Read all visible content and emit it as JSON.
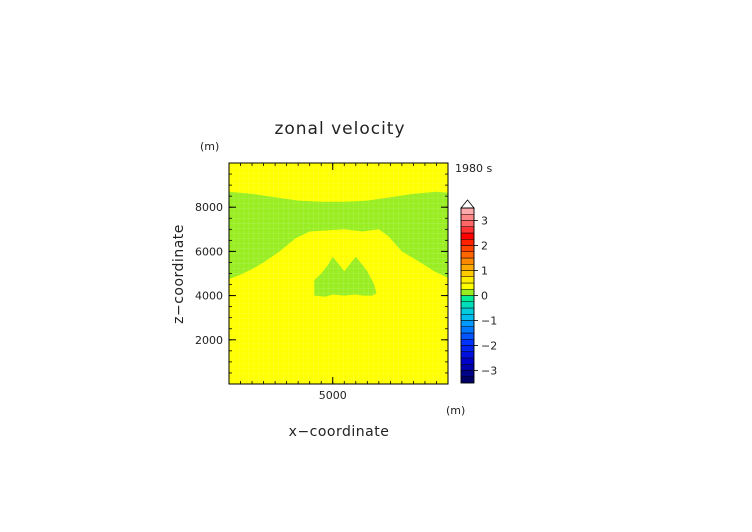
{
  "chart_data": {
    "type": "heatmap",
    "title": "zonal velocity",
    "xlabel": "x−coordinate",
    "ylabel": "z−coordinate",
    "x_unit": "(m)",
    "y_unit": "(m)",
    "time_label": "1980 s",
    "xlim": [
      500,
      10000
    ],
    "ylim": [
      0,
      10000
    ],
    "x_ticks": [
      {
        "value": 5000,
        "label": "5000"
      }
    ],
    "y_ticks": [
      {
        "value": 2000,
        "label": "2000"
      },
      {
        "value": 4000,
        "label": "4000"
      },
      {
        "value": 6000,
        "label": "6000"
      },
      {
        "value": 8000,
        "label": "8000"
      }
    ],
    "background_value": 0.2,
    "background_color": "#ffff00",
    "regions": [
      {
        "value": -0.2,
        "color": "#99ee22",
        "points": [
          [
            500,
            8700
          ],
          [
            1500,
            8600
          ],
          [
            2500,
            8450
          ],
          [
            3500,
            8300
          ],
          [
            4500,
            8250
          ],
          [
            5500,
            8250
          ],
          [
            6500,
            8300
          ],
          [
            7500,
            8450
          ],
          [
            8500,
            8600
          ],
          [
            9500,
            8700
          ],
          [
            10000,
            8650
          ],
          [
            10000,
            4800
          ],
          [
            9400,
            5100
          ],
          [
            8800,
            5500
          ],
          [
            8000,
            6000
          ],
          [
            7400,
            6700
          ],
          [
            7000,
            7000
          ],
          [
            6300,
            6900
          ],
          [
            5500,
            7000
          ],
          [
            4800,
            6950
          ],
          [
            4000,
            6900
          ],
          [
            3400,
            6600
          ],
          [
            2700,
            6000
          ],
          [
            2000,
            5500
          ],
          [
            1500,
            5200
          ],
          [
            1000,
            4950
          ],
          [
            500,
            4750
          ]
        ]
      },
      {
        "value": -0.2,
        "color": "#99ee22",
        "points": [
          [
            4200,
            4000
          ],
          [
            4200,
            4700
          ],
          [
            4500,
            5000
          ],
          [
            4800,
            5400
          ],
          [
            5000,
            5750
          ],
          [
            5200,
            5500
          ],
          [
            5500,
            5100
          ],
          [
            5800,
            5500
          ],
          [
            6000,
            5750
          ],
          [
            6200,
            5500
          ],
          [
            6500,
            5100
          ],
          [
            6800,
            4500
          ],
          [
            6900,
            4100
          ],
          [
            6700,
            4000
          ],
          [
            6300,
            4000
          ],
          [
            6000,
            4050
          ],
          [
            5500,
            4000
          ],
          [
            5000,
            4050
          ],
          [
            4700,
            3950
          ]
        ]
      }
    ],
    "colorbar": {
      "levels": [
        -3.5,
        -3.25,
        -3,
        -2.75,
        -2.5,
        -2.25,
        -2,
        -1.75,
        -1.5,
        -1.25,
        -1,
        -0.75,
        -0.5,
        -0.25,
        0,
        0.25,
        0.5,
        0.75,
        1,
        1.25,
        1.5,
        1.75,
        2,
        2.25,
        2.5,
        2.75,
        3,
        3.25,
        3.5
      ],
      "colors": [
        "#000066",
        "#000088",
        "#0000aa",
        "#0000cc",
        "#0011dd",
        "#0022ee",
        "#0033ff",
        "#0055ff",
        "#0077ff",
        "#0099ff",
        "#00bbee",
        "#00ccdd",
        "#00ddbb",
        "#00ee99",
        "#99ee22",
        "#ffff00",
        "#ffee00",
        "#ffcc00",
        "#ffaa00",
        "#ff8800",
        "#ff6600",
        "#ff4400",
        "#ff2200",
        "#ff0000",
        "#ff3333",
        "#ff6666",
        "#ff8888",
        "#ffaaaa"
      ],
      "tick_labels": [
        {
          "value": 3,
          "label": "3"
        },
        {
          "value": 2,
          "label": "2"
        },
        {
          "value": 1,
          "label": "1"
        },
        {
          "value": 0,
          "label": "0"
        },
        {
          "value": -1,
          "label": "−1"
        },
        {
          "value": -2,
          "label": "−2"
        },
        {
          "value": -3,
          "label": "−3"
        }
      ]
    }
  }
}
